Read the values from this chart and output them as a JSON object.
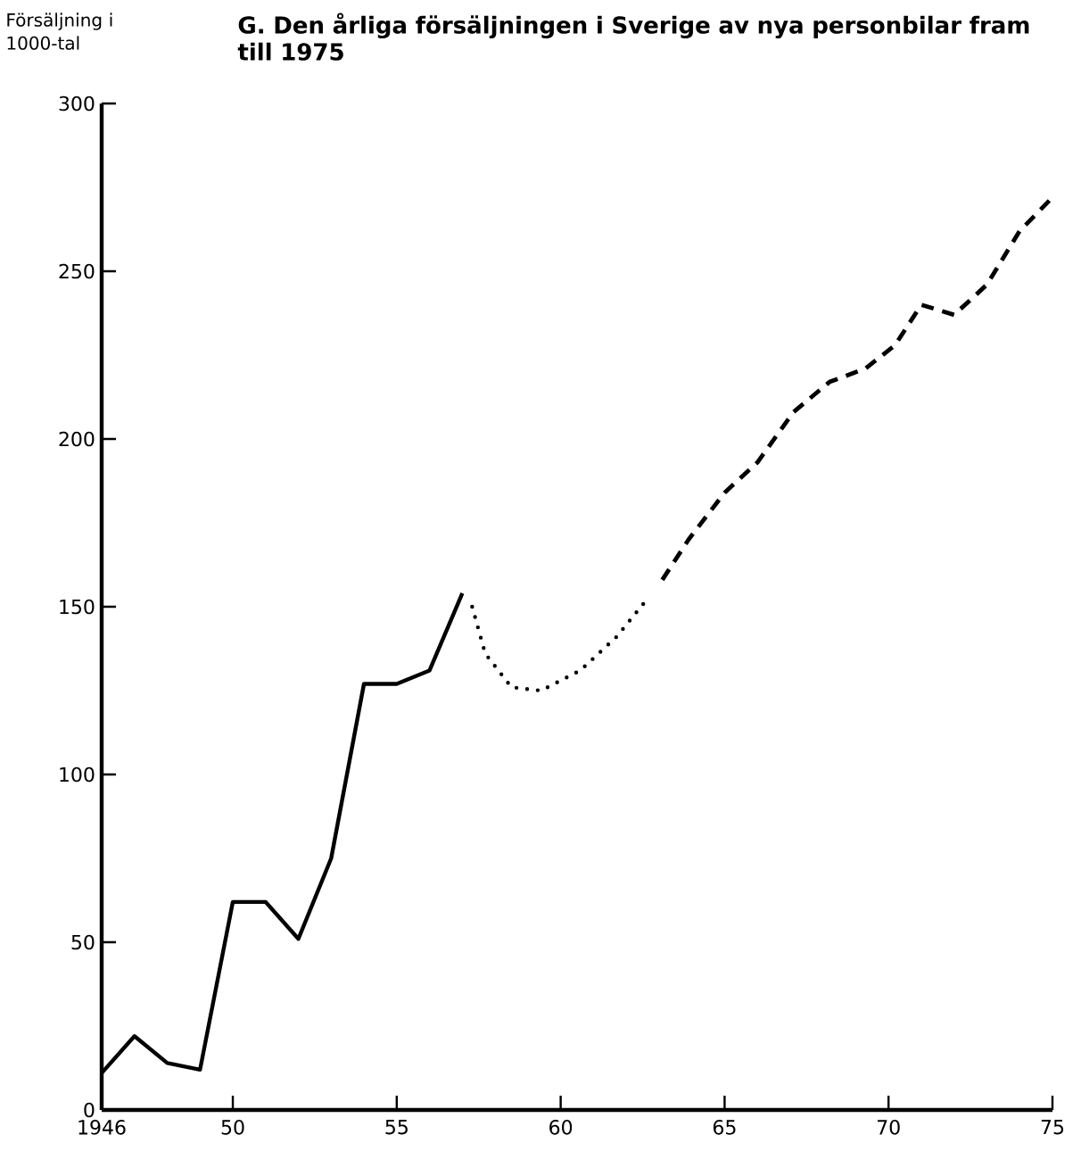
{
  "chart_data": {
    "type": "line",
    "title": "G. Den årliga försäljningen i Sverige av nya personbilar fram till 1975",
    "ylabel": "Försäljning i 1000-tal",
    "xlim": [
      1946,
      1975
    ],
    "ylim": [
      0,
      300
    ],
    "xticks": [
      {
        "value": 1946,
        "label": "1946"
      },
      {
        "value": 1950,
        "label": "50"
      },
      {
        "value": 1955,
        "label": "55"
      },
      {
        "value": 1960,
        "label": "60"
      },
      {
        "value": 1965,
        "label": "65"
      },
      {
        "value": 1970,
        "label": "70"
      },
      {
        "value": 1975,
        "label": "75"
      }
    ],
    "yticks": [
      0,
      50,
      100,
      150,
      200,
      250,
      300
    ],
    "series": [
      {
        "color": "#000000",
        "line_style": "solid",
        "x": [
          1946,
          1947,
          1948,
          1949,
          1950,
          1951,
          1952,
          1953,
          1954,
          1955,
          1956,
          1957
        ],
        "values": [
          11,
          22,
          14,
          12,
          62,
          62,
          51,
          75,
          127,
          127,
          131,
          154
        ]
      },
      {
        "color": "#000000",
        "line_style": "dotted",
        "x": [
          1957.3,
          1957.7,
          1958.5,
          1959.4,
          1960.6,
          1961.7,
          1962.7
        ],
        "values": [
          150,
          136,
          126,
          125,
          131,
          141,
          153
        ]
      },
      {
        "color": "#000000",
        "line_style": "dashed",
        "x": [
          1963.1,
          1963.9,
          1965.0,
          1966.0,
          1967.1,
          1968.2,
          1969.3,
          1970.2,
          1971.0,
          1972.0,
          1973.0,
          1974.0,
          1975.0
        ],
        "values": [
          158,
          170,
          184,
          193,
          208,
          217,
          221,
          228,
          240,
          237,
          246,
          262,
          272
        ]
      }
    ]
  }
}
